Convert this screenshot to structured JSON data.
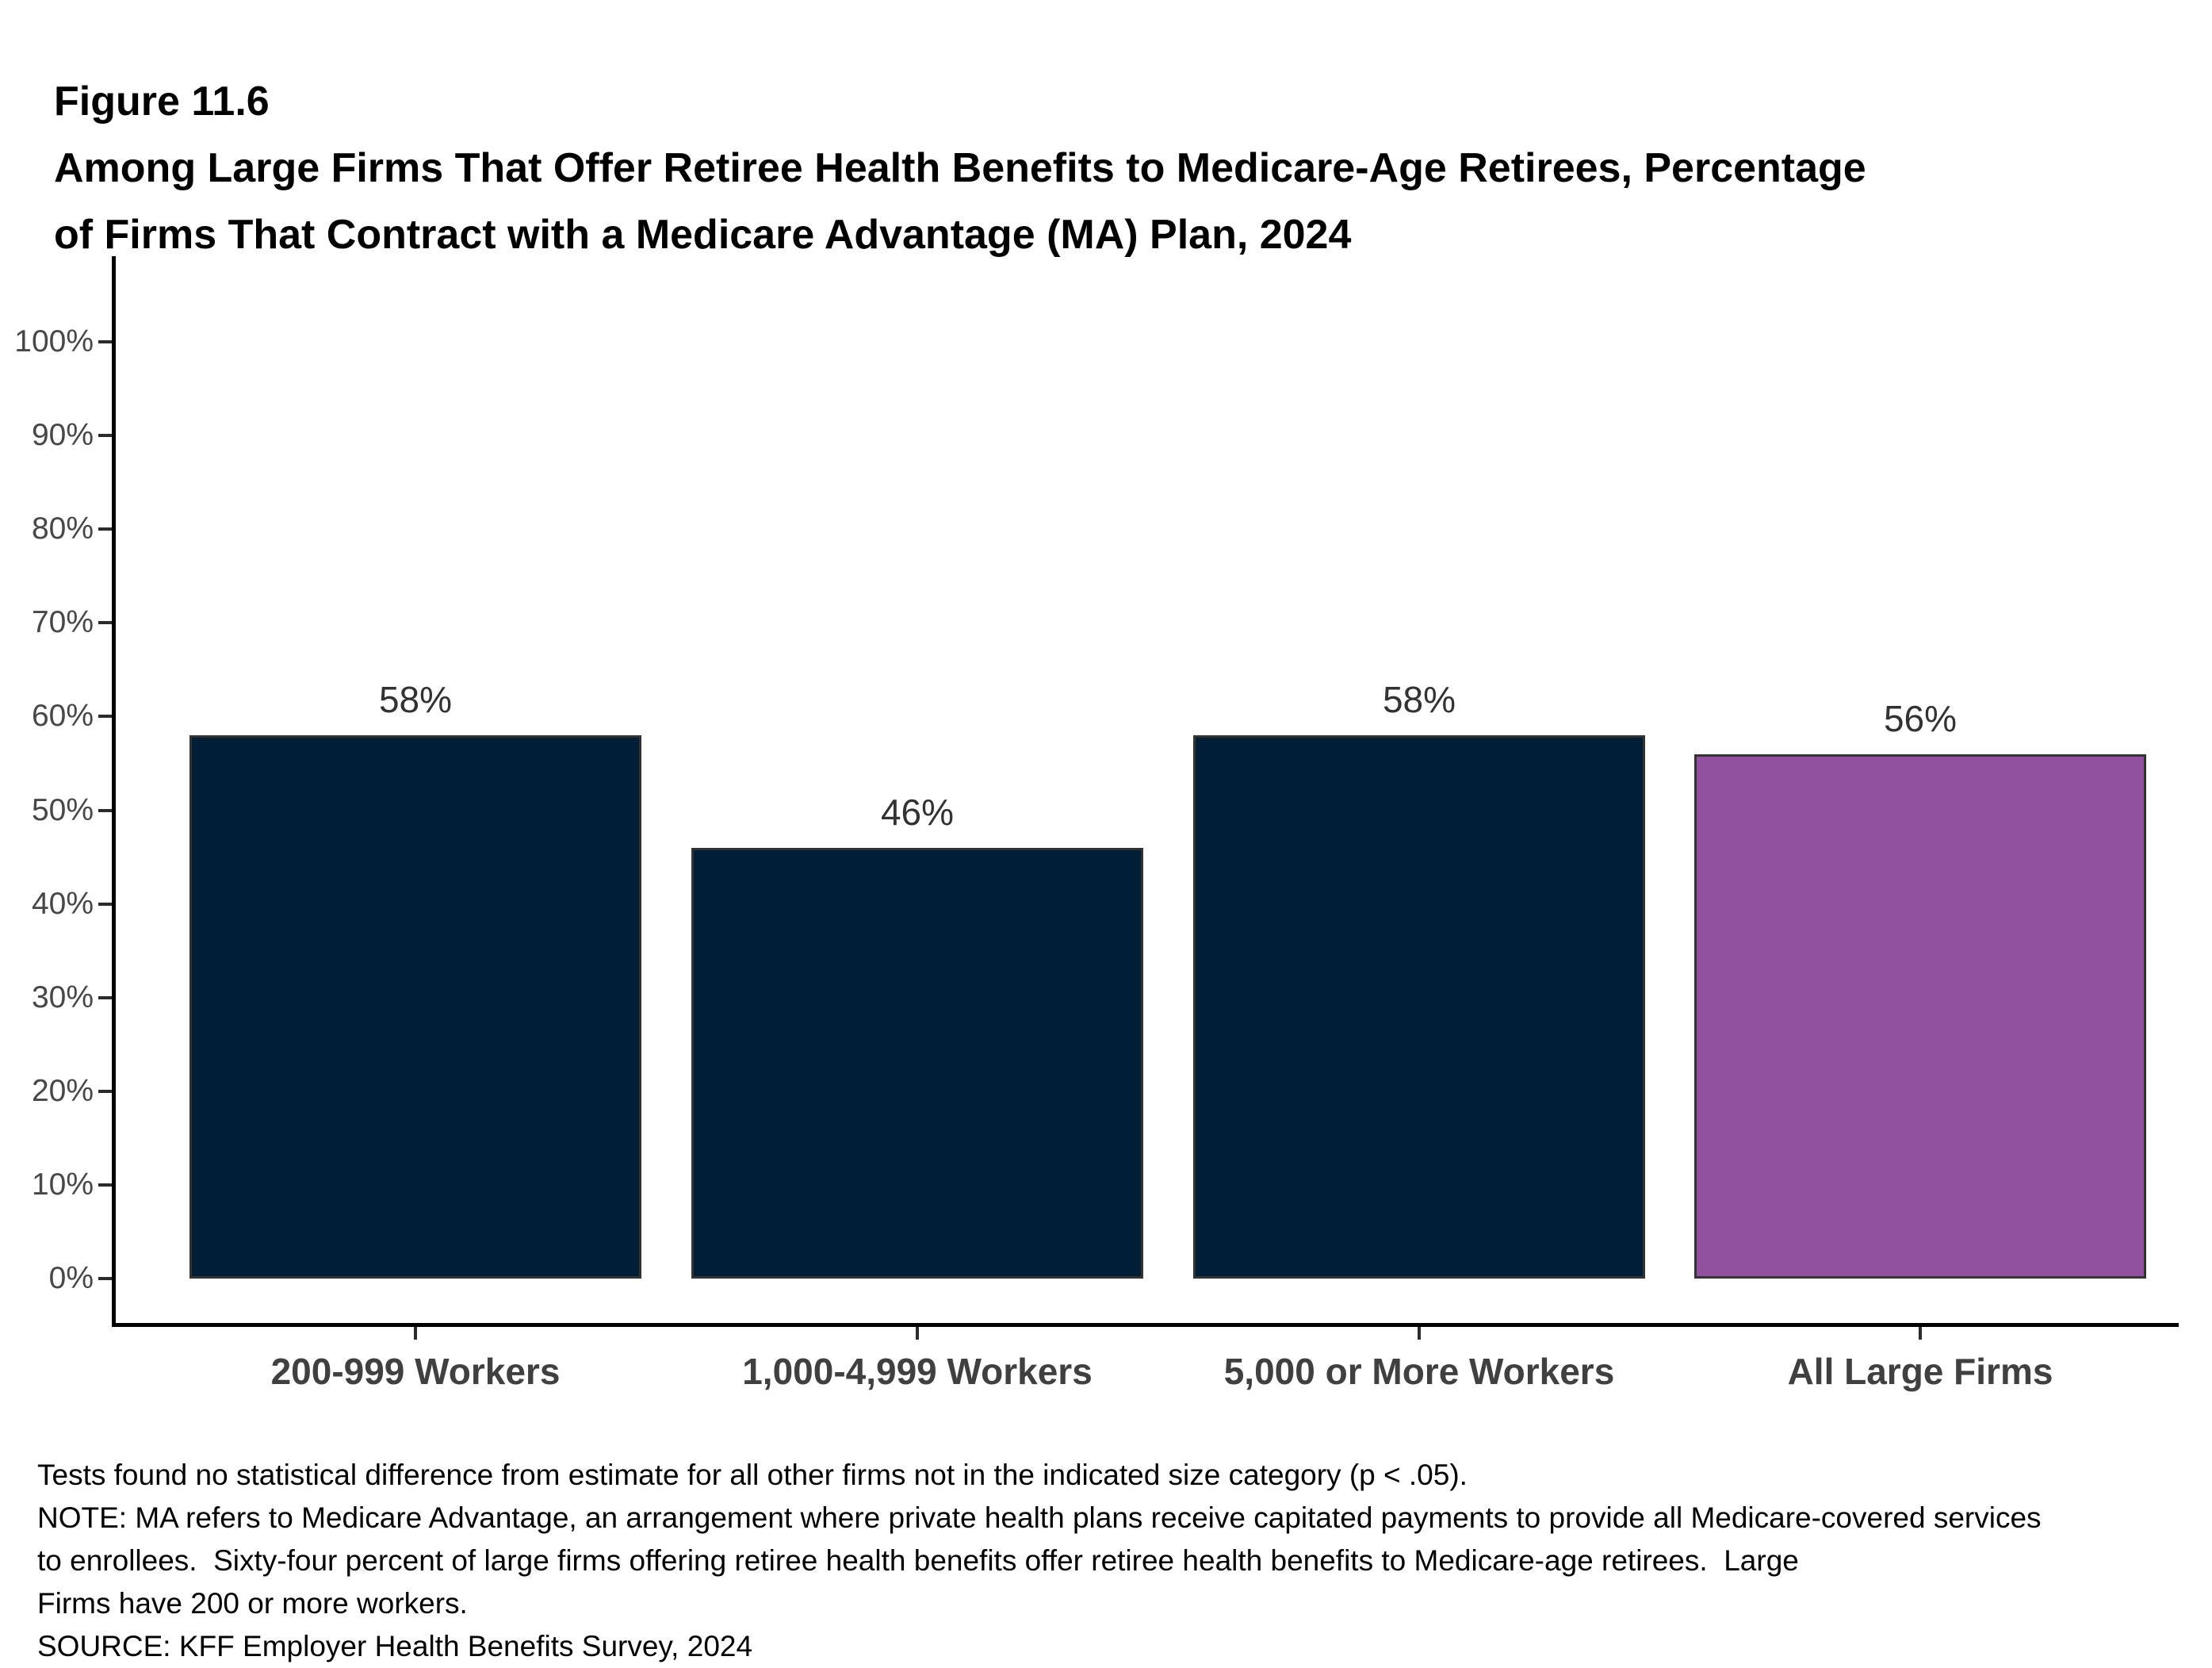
{
  "figure": {
    "label": "Figure 11.6",
    "title_line_1": "Among Large Firms That Offer Retiree Health Benefits to Medicare-Age Retirees, Percentage",
    "title_line_2": "of Firms That Contract with a Medicare Advantage (MA) Plan, 2024"
  },
  "chart_data": {
    "type": "bar",
    "title": "Among Large Firms That Offer Retiree Health Benefits to Medicare-Age Retirees, Percentage of Firms That Contract with a Medicare Advantage (MA) Plan, 2024",
    "categories": [
      "200-999 Workers",
      "1,000-4,999 Workers",
      "5,000 or More Workers",
      "All Large Firms"
    ],
    "values": [
      58,
      46,
      58,
      56
    ],
    "value_labels": [
      "58%",
      "46%",
      "58%",
      "56%"
    ],
    "bar_colors": [
      "#001E36",
      "#001E36",
      "#001E36",
      "#92519F"
    ],
    "xlabel": "",
    "ylabel": "",
    "ylim": [
      0,
      100
    ],
    "ytick_labels": [
      "0%",
      "10%",
      "20%",
      "30%",
      "40%",
      "50%",
      "60%",
      "70%",
      "80%",
      "90%",
      "100%"
    ],
    "grid": false,
    "legend_position": "none"
  },
  "colors": {
    "navy": "#001E36",
    "purple": "#92519F",
    "bar_border": "#333333",
    "axis": "#000000",
    "y_tick_label": "#474747",
    "value_label": "#323232",
    "category_label": "#404040"
  },
  "footer": {
    "lines": [
      "Tests found no statistical difference from estimate for all other firms not in the indicated size category (p < .05).",
      "NOTE: MA refers to Medicare Advantage, an arrangement where private health plans receive capitated payments to provide all Medicare-covered services",
      "to enrollees.  Sixty-four percent of large firms offering retiree health benefits offer retiree health benefits to Medicare-age retirees.  Large",
      "Firms have 200 or more workers.",
      "SOURCE: KFF Employer Health Benefits Survey, 2024"
    ]
  }
}
